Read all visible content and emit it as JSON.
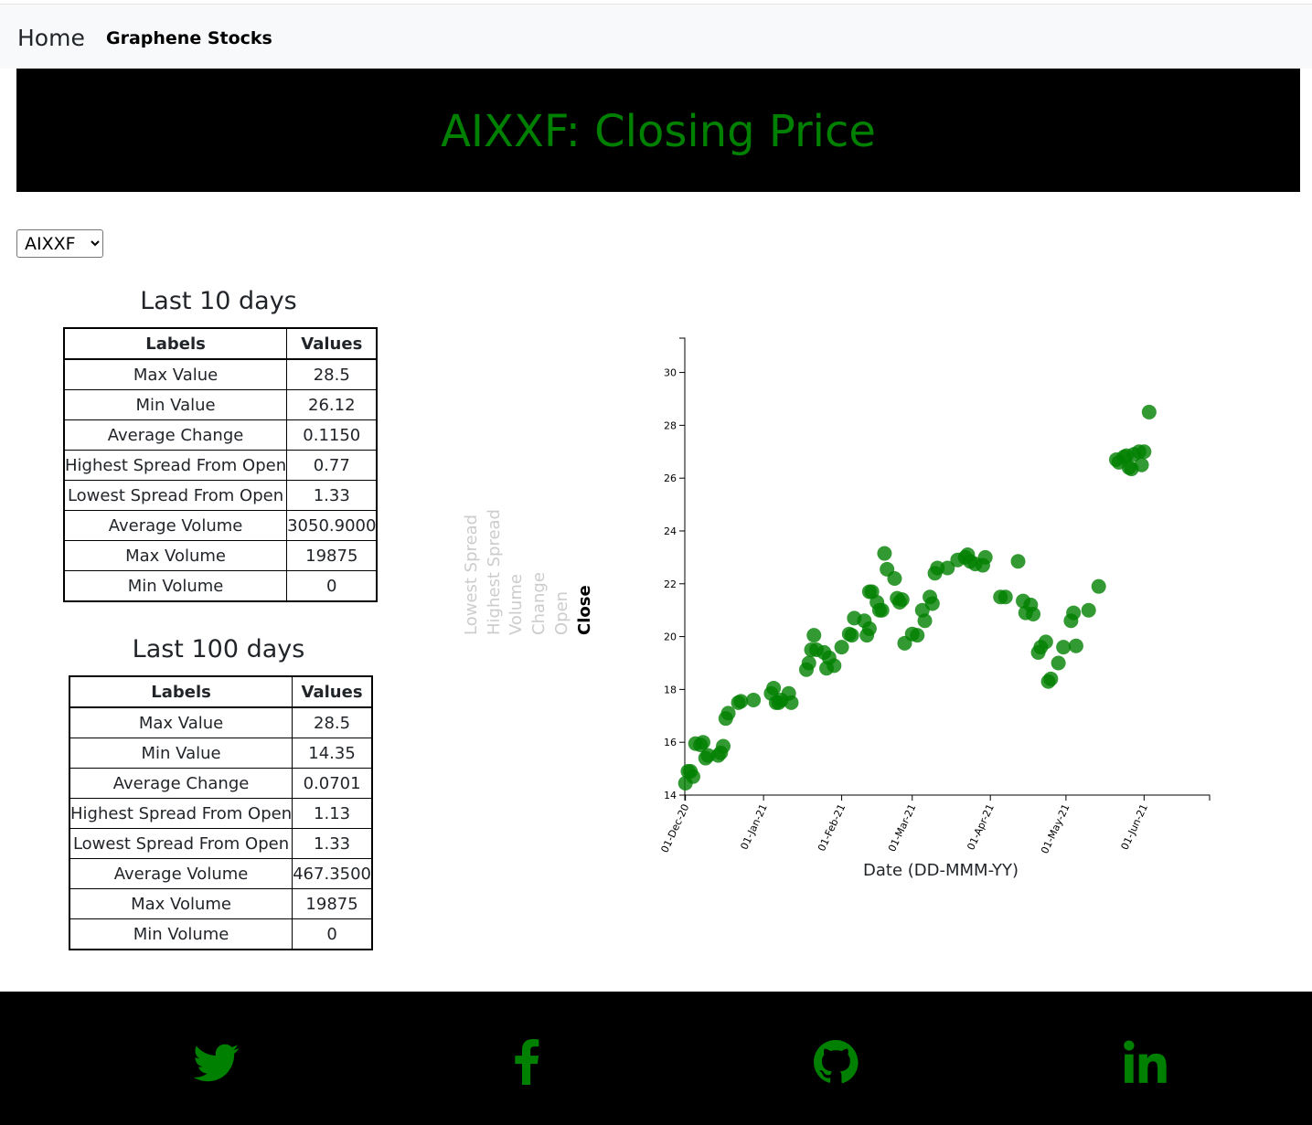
{
  "nav": {
    "home": "Home",
    "brand": "Graphene Stocks"
  },
  "banner": {
    "title": "AIXXF: Closing Price"
  },
  "ticker": {
    "selected": "AIXXF",
    "options": [
      "AIXXF"
    ]
  },
  "tables": [
    {
      "title": "Last 10 days",
      "headers": [
        "Labels",
        "Values"
      ],
      "rows": [
        [
          "Max Value",
          "28.5"
        ],
        [
          "Min Value",
          "26.12"
        ],
        [
          "Average Change",
          "0.1150"
        ],
        [
          "Highest Spread From Open",
          "0.77"
        ],
        [
          "Lowest Spread From Open",
          "1.33"
        ],
        [
          "Average Volume",
          "3050.9000"
        ],
        [
          "Max Volume",
          "19875"
        ],
        [
          "Min Volume",
          "0"
        ]
      ]
    },
    {
      "title": "Last 100 days",
      "headers": [
        "Labels",
        "Values"
      ],
      "rows": [
        [
          "Max Value",
          "28.5"
        ],
        [
          "Min Value",
          "14.35"
        ],
        [
          "Average Change",
          "0.0701"
        ],
        [
          "Highest Spread From Open",
          "1.13"
        ],
        [
          "Lowest Spread From Open",
          "1.33"
        ],
        [
          "Average Volume",
          "467.3500"
        ],
        [
          "Max Volume",
          "19875"
        ],
        [
          "Min Volume",
          "0"
        ]
      ]
    }
  ],
  "legend": {
    "items": [
      "Lowest Spread",
      "Highest Spread",
      "Volume",
      "Change",
      "Open",
      "Close"
    ],
    "active": "Close",
    "active_color": "#000000",
    "inactive_color": "#cccccc"
  },
  "chart_data": {
    "type": "scatter",
    "xlabel": "Date (DD-MMM-YY)",
    "ylabel": "",
    "ylim": [
      14,
      31.3
    ],
    "xlim": [
      "2020-12-01",
      "2021-06-27"
    ],
    "xticks": [
      {
        "date": "2020-12-01",
        "label": "01-Dec-20"
      },
      {
        "date": "2021-01-01",
        "label": "01-Jan-21"
      },
      {
        "date": "2021-02-01",
        "label": "01-Feb-21"
      },
      {
        "date": "2021-03-01",
        "label": "01-Mar-21"
      },
      {
        "date": "2021-04-01",
        "label": "01-Apr-21"
      },
      {
        "date": "2021-05-01",
        "label": "01-May-21"
      },
      {
        "date": "2021-06-01",
        "label": "01-Jun-21"
      }
    ],
    "yticks": [
      14,
      16,
      18,
      20,
      22,
      24,
      26,
      28,
      30
    ],
    "point_color": "#008000",
    "series": [
      {
        "values": [
          {
            "x": "2020-12-01",
            "y": 14.45
          },
          {
            "x": "2020-12-02",
            "y": 14.9
          },
          {
            "x": "2020-12-03",
            "y": 14.9
          },
          {
            "x": "2020-12-04",
            "y": 14.7
          },
          {
            "x": "2020-12-05",
            "y": 15.95
          },
          {
            "x": "2020-12-07",
            "y": 15.9
          },
          {
            "x": "2020-12-08",
            "y": 16.0
          },
          {
            "x": "2020-12-09",
            "y": 15.4
          },
          {
            "x": "2020-12-10",
            "y": 15.5
          },
          {
            "x": "2020-12-14",
            "y": 15.5
          },
          {
            "x": "2020-12-15",
            "y": 15.6
          },
          {
            "x": "2020-12-16",
            "y": 15.85
          },
          {
            "x": "2020-12-17",
            "y": 16.9
          },
          {
            "x": "2020-12-18",
            "y": 17.1
          },
          {
            "x": "2020-12-22",
            "y": 17.5
          },
          {
            "x": "2020-12-23",
            "y": 17.55
          },
          {
            "x": "2020-12-28",
            "y": 17.6
          },
          {
            "x": "2021-01-04",
            "y": 17.85
          },
          {
            "x": "2021-01-05",
            "y": 18.05
          },
          {
            "x": "2021-01-06",
            "y": 17.5
          },
          {
            "x": "2021-01-07",
            "y": 17.5
          },
          {
            "x": "2021-01-08",
            "y": 17.6
          },
          {
            "x": "2021-01-11",
            "y": 17.85
          },
          {
            "x": "2021-01-12",
            "y": 17.5
          },
          {
            "x": "2021-01-18",
            "y": 18.75
          },
          {
            "x": "2021-01-19",
            "y": 19.0
          },
          {
            "x": "2021-01-20",
            "y": 19.5
          },
          {
            "x": "2021-01-21",
            "y": 20.05
          },
          {
            "x": "2021-01-22",
            "y": 19.5
          },
          {
            "x": "2021-01-25",
            "y": 19.4
          },
          {
            "x": "2021-01-26",
            "y": 18.8
          },
          {
            "x": "2021-01-27",
            "y": 19.2
          },
          {
            "x": "2021-01-29",
            "y": 18.9
          },
          {
            "x": "2021-02-01",
            "y": 19.6
          },
          {
            "x": "2021-02-04",
            "y": 20.1
          },
          {
            "x": "2021-02-05",
            "y": 20.05
          },
          {
            "x": "2021-02-06",
            "y": 20.7
          },
          {
            "x": "2021-02-10",
            "y": 20.6
          },
          {
            "x": "2021-02-11",
            "y": 20.05
          },
          {
            "x": "2021-02-12",
            "y": 20.3
          },
          {
            "x": "2021-02-12",
            "y": 21.7
          },
          {
            "x": "2021-02-13",
            "y": 21.7
          },
          {
            "x": "2021-02-15",
            "y": 21.3
          },
          {
            "x": "2021-02-16",
            "y": 21.0
          },
          {
            "x": "2021-02-17",
            "y": 21.0
          },
          {
            "x": "2021-02-18",
            "y": 23.15
          },
          {
            "x": "2021-02-19",
            "y": 22.55
          },
          {
            "x": "2021-02-22",
            "y": 22.2
          },
          {
            "x": "2021-02-23",
            "y": 21.45
          },
          {
            "x": "2021-02-24",
            "y": 21.3
          },
          {
            "x": "2021-02-25",
            "y": 21.4
          },
          {
            "x": "2021-02-26",
            "y": 19.75
          },
          {
            "x": "2021-03-01",
            "y": 20.1
          },
          {
            "x": "2021-03-03",
            "y": 20.05
          },
          {
            "x": "2021-03-05",
            "y": 21.0
          },
          {
            "x": "2021-03-06",
            "y": 20.6
          },
          {
            "x": "2021-03-08",
            "y": 21.5
          },
          {
            "x": "2021-03-09",
            "y": 21.25
          },
          {
            "x": "2021-03-10",
            "y": 22.4
          },
          {
            "x": "2021-03-11",
            "y": 22.6
          },
          {
            "x": "2021-03-15",
            "y": 22.6
          },
          {
            "x": "2021-03-19",
            "y": 22.9
          },
          {
            "x": "2021-03-22",
            "y": 23.0
          },
          {
            "x": "2021-03-23",
            "y": 23.1
          },
          {
            "x": "2021-03-24",
            "y": 22.85
          },
          {
            "x": "2021-03-26",
            "y": 22.75
          },
          {
            "x": "2021-03-29",
            "y": 22.7
          },
          {
            "x": "2021-03-30",
            "y": 23.0
          },
          {
            "x": "2021-04-05",
            "y": 21.5
          },
          {
            "x": "2021-04-07",
            "y": 21.5
          },
          {
            "x": "2021-04-12",
            "y": 22.85
          },
          {
            "x": "2021-04-14",
            "y": 21.35
          },
          {
            "x": "2021-04-15",
            "y": 20.9
          },
          {
            "x": "2021-04-17",
            "y": 21.2
          },
          {
            "x": "2021-04-18",
            "y": 20.85
          },
          {
            "x": "2021-04-20",
            "y": 19.4
          },
          {
            "x": "2021-04-21",
            "y": 19.6
          },
          {
            "x": "2021-04-23",
            "y": 19.8
          },
          {
            "x": "2021-04-24",
            "y": 18.3
          },
          {
            "x": "2021-04-25",
            "y": 18.4
          },
          {
            "x": "2021-04-28",
            "y": 19.0
          },
          {
            "x": "2021-04-30",
            "y": 19.6
          },
          {
            "x": "2021-05-03",
            "y": 20.6
          },
          {
            "x": "2021-05-04",
            "y": 20.9
          },
          {
            "x": "2021-05-05",
            "y": 19.65
          },
          {
            "x": "2021-05-10",
            "y": 21.0
          },
          {
            "x": "2021-05-14",
            "y": 21.9
          },
          {
            "x": "2021-05-21",
            "y": 26.7
          },
          {
            "x": "2021-05-22",
            "y": 26.6
          },
          {
            "x": "2021-05-24",
            "y": 26.8
          },
          {
            "x": "2021-05-25",
            "y": 26.85
          },
          {
            "x": "2021-05-26",
            "y": 26.4
          },
          {
            "x": "2021-05-27",
            "y": 26.35
          },
          {
            "x": "2021-05-28",
            "y": 26.9
          },
          {
            "x": "2021-05-30",
            "y": 27.0
          },
          {
            "x": "2021-05-31",
            "y": 26.5
          },
          {
            "x": "2021-06-01",
            "y": 27.0
          },
          {
            "x": "2021-06-03",
            "y": 28.5
          }
        ]
      }
    ]
  },
  "footer": {
    "icons": [
      "twitter-icon",
      "facebook-icon",
      "github-icon",
      "linkedin-icon"
    ],
    "icon_color": "#008000"
  }
}
